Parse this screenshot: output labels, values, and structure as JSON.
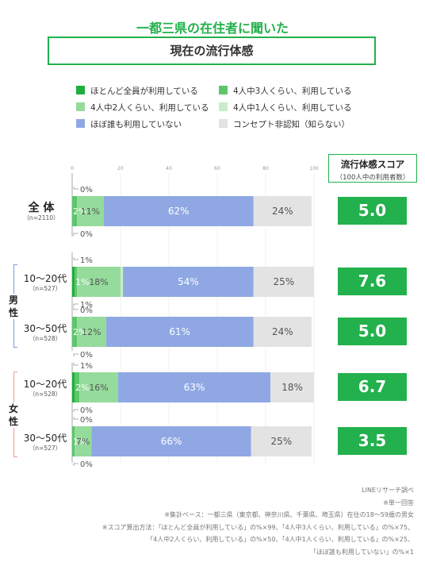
{
  "header": {
    "supertitle": "一都三県の在住者に聞いた",
    "title": "現在の流行体感"
  },
  "score_header": {
    "title": "流行体感スコア",
    "subtitle": "（100人中の利用者数）"
  },
  "chart_data": {
    "type": "bar",
    "orientation": "horizontal",
    "stacked": true,
    "xlim": [
      0,
      100
    ],
    "x_ticks": [
      0,
      20,
      40,
      60,
      80,
      100
    ],
    "legend_position": "top",
    "categories": [
      "全 体",
      "10〜20代",
      "30〜50代",
      "10〜20代",
      "30〜50代"
    ],
    "category_n": [
      "（n=2110）",
      "（n=527）",
      "（n=528）",
      "（n=528）",
      "（n=527）"
    ],
    "groups": [
      {
        "label": "男性",
        "categories": [
          1,
          2
        ]
      },
      {
        "label": "女性",
        "categories": [
          3,
          4
        ]
      }
    ],
    "series": [
      {
        "name": "ほとんど全員が利用している",
        "color": "#1fae3c",
        "values": [
          0,
          1,
          0,
          1,
          0
        ],
        "labels": [
          "0%",
          "1%",
          "0%",
          "1%",
          "0%"
        ]
      },
      {
        "name": "4人中3人くらい、利用している",
        "color": "#5cc66a",
        "values": [
          2,
          1,
          2,
          2,
          1
        ],
        "labels": [
          "2%",
          "1%",
          "2%",
          "2%",
          "1%"
        ]
      },
      {
        "name": "4人中2人くらい、利用している",
        "color": "#95db9c",
        "values": [
          11,
          18,
          12,
          16,
          7
        ],
        "labels": [
          "11%",
          "18%",
          "12%",
          "16%",
          "7%"
        ]
      },
      {
        "name": "4人中1人くらい、利用している",
        "color": "#c8edc9",
        "values": [
          0,
          1,
          0,
          0,
          0
        ],
        "labels": [
          "0%",
          "1%",
          "0%",
          "0%",
          "0%"
        ]
      },
      {
        "name": "ほぼ誰も利用していない",
        "color": "#8fa8e3",
        "values": [
          62,
          54,
          61,
          63,
          66
        ],
        "labels": [
          "62%",
          "54%",
          "61%",
          "63%",
          "66%"
        ]
      },
      {
        "name": "コンセプト非認知（知らない）",
        "color": "#e3e3e3",
        "values": [
          24,
          25,
          24,
          18,
          25
        ],
        "labels": [
          "24%",
          "25%",
          "24%",
          "18%",
          "25%"
        ]
      }
    ],
    "scores": [
      "5.0",
      "7.6",
      "5.0",
      "6.7",
      "3.5"
    ]
  },
  "footnotes": [
    "LINEリサーチ調べ",
    "※単一回答",
    "※集計ベース：一都三県（東京都、神奈川県、千葉県、埼玉県）在住の18〜59歳の男女",
    "※スコア算出方法：「ほとんど全員が利用している」の%×99、「4人中3人くらい、利用している」の%×75、",
    "「4人中2人くらい、利用している」の%×50、「4人中1人くらい、利用している」の%×25、",
    "「ほぼ誰も利用していない」の%×1"
  ]
}
